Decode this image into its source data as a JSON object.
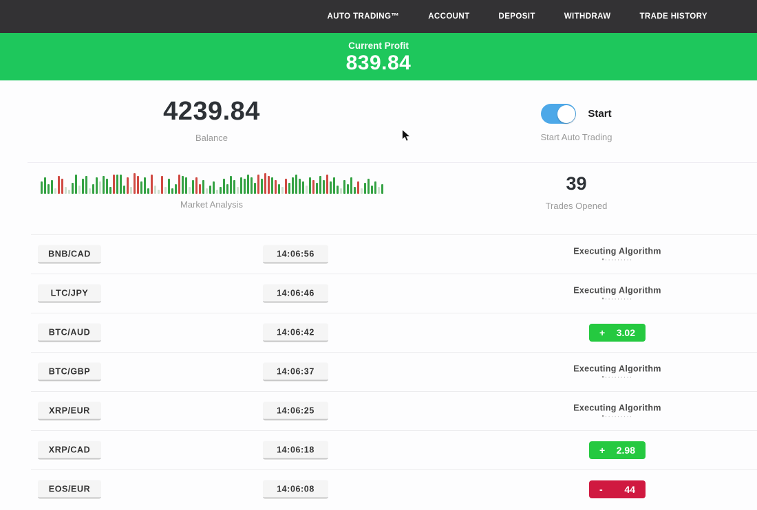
{
  "colors": {
    "nav_bg": "#333234",
    "banner_green": "#1ec75c",
    "toggle_blue": "#4da8e8",
    "profit_green": "#25c940",
    "loss_red": "#d01940"
  },
  "nav": {
    "items": [
      {
        "label": "AUTO TRADING™"
      },
      {
        "label": "ACCOUNT"
      },
      {
        "label": "DEPOSIT"
      },
      {
        "label": "WITHDRAW"
      },
      {
        "label": "TRADE HISTORY"
      }
    ]
  },
  "profit_banner": {
    "label": "Current Profit",
    "value": "839.84"
  },
  "stats": {
    "balance": {
      "value": "4239.84",
      "label": "Balance"
    },
    "auto_trading": {
      "toggle_label": "Start",
      "label": "Start Auto Trading",
      "toggle_state": "on"
    },
    "market_analysis": {
      "label": "Market Analysis",
      "bars": [
        [
          18,
          "g"
        ],
        [
          24,
          "g"
        ],
        [
          14,
          "g"
        ],
        [
          20,
          "g"
        ],
        [
          8,
          "f"
        ],
        [
          26,
          "r"
        ],
        [
          22,
          "r"
        ],
        [
          10,
          "f"
        ],
        [
          6,
          "f"
        ],
        [
          16,
          "g"
        ],
        [
          28,
          "g"
        ],
        [
          12,
          "f"
        ],
        [
          22,
          "g"
        ],
        [
          26,
          "g"
        ],
        [
          8,
          "f"
        ],
        [
          14,
          "g"
        ],
        [
          24,
          "g"
        ],
        [
          18,
          "f"
        ],
        [
          26,
          "g"
        ],
        [
          22,
          "g"
        ],
        [
          10,
          "g"
        ],
        [
          28,
          "r"
        ],
        [
          28,
          "g"
        ],
        [
          28,
          "g"
        ],
        [
          12,
          "g"
        ],
        [
          24,
          "r"
        ],
        [
          10,
          "f"
        ],
        [
          30,
          "r"
        ],
        [
          26,
          "r"
        ],
        [
          18,
          "g"
        ],
        [
          24,
          "g"
        ],
        [
          8,
          "g"
        ],
        [
          28,
          "r"
        ],
        [
          12,
          "f"
        ],
        [
          6,
          "f"
        ],
        [
          26,
          "r"
        ],
        [
          10,
          "f"
        ],
        [
          22,
          "g"
        ],
        [
          8,
          "g"
        ],
        [
          14,
          "g"
        ],
        [
          28,
          "r"
        ],
        [
          26,
          "g"
        ],
        [
          24,
          "g"
        ],
        [
          10,
          "f"
        ],
        [
          20,
          "g"
        ],
        [
          24,
          "r"
        ],
        [
          14,
          "r"
        ],
        [
          20,
          "g"
        ],
        [
          8,
          "f"
        ],
        [
          12,
          "g"
        ],
        [
          18,
          "g"
        ],
        [
          6,
          "f"
        ],
        [
          10,
          "g"
        ],
        [
          22,
          "g"
        ],
        [
          14,
          "g"
        ],
        [
          26,
          "g"
        ],
        [
          20,
          "g"
        ],
        [
          10,
          "f"
        ],
        [
          24,
          "g"
        ],
        [
          22,
          "g"
        ],
        [
          28,
          "g"
        ],
        [
          24,
          "g"
        ],
        [
          16,
          "g"
        ],
        [
          28,
          "r"
        ],
        [
          22,
          "g"
        ],
        [
          30,
          "r"
        ],
        [
          26,
          "r"
        ],
        [
          24,
          "g"
        ],
        [
          20,
          "r"
        ],
        [
          14,
          "g"
        ],
        [
          10,
          "f"
        ],
        [
          22,
          "r"
        ],
        [
          16,
          "g"
        ],
        [
          24,
          "g"
        ],
        [
          28,
          "g"
        ],
        [
          22,
          "g"
        ],
        [
          18,
          "g"
        ],
        [
          12,
          "f"
        ],
        [
          24,
          "g"
        ],
        [
          20,
          "r"
        ],
        [
          16,
          "g"
        ],
        [
          26,
          "g"
        ],
        [
          20,
          "g"
        ],
        [
          28,
          "r"
        ],
        [
          18,
          "g"
        ],
        [
          24,
          "g"
        ],
        [
          12,
          "g"
        ],
        [
          8,
          "f"
        ],
        [
          20,
          "g"
        ],
        [
          14,
          "g"
        ],
        [
          24,
          "g"
        ],
        [
          10,
          "g"
        ],
        [
          18,
          "r"
        ],
        [
          8,
          "f"
        ],
        [
          16,
          "g"
        ],
        [
          22,
          "g"
        ],
        [
          12,
          "g"
        ],
        [
          18,
          "g"
        ],
        [
          10,
          "f"
        ],
        [
          14,
          "g"
        ]
      ]
    },
    "trades_opened": {
      "value": "39",
      "label": "Trades Opened"
    }
  },
  "trades": [
    {
      "pair": "BNB/CAD",
      "time": "14:06:56",
      "status": "executing",
      "status_label": "Executing Algorithm",
      "dots": "•·········"
    },
    {
      "pair": "LTC/JPY",
      "time": "14:06:46",
      "status": "executing",
      "status_label": "Executing Algorithm",
      "dots": "•·········"
    },
    {
      "pair": "BTC/AUD",
      "time": "14:06:42",
      "status": "result",
      "result_type": "profit",
      "result_sign": "+",
      "result_value": "3.02"
    },
    {
      "pair": "BTC/GBP",
      "time": "14:06:37",
      "status": "executing",
      "status_label": "Executing Algorithm",
      "dots": "•·········"
    },
    {
      "pair": "XRP/EUR",
      "time": "14:06:25",
      "status": "executing",
      "status_label": "Executing Algorithm",
      "dots": "•·········"
    },
    {
      "pair": "XRP/CAD",
      "time": "14:06:18",
      "status": "result",
      "result_type": "profit",
      "result_sign": "+",
      "result_value": "2.98"
    },
    {
      "pair": "EOS/EUR",
      "time": "14:06:08",
      "status": "result",
      "result_type": "loss",
      "result_sign": "-",
      "result_value": "44"
    }
  ]
}
